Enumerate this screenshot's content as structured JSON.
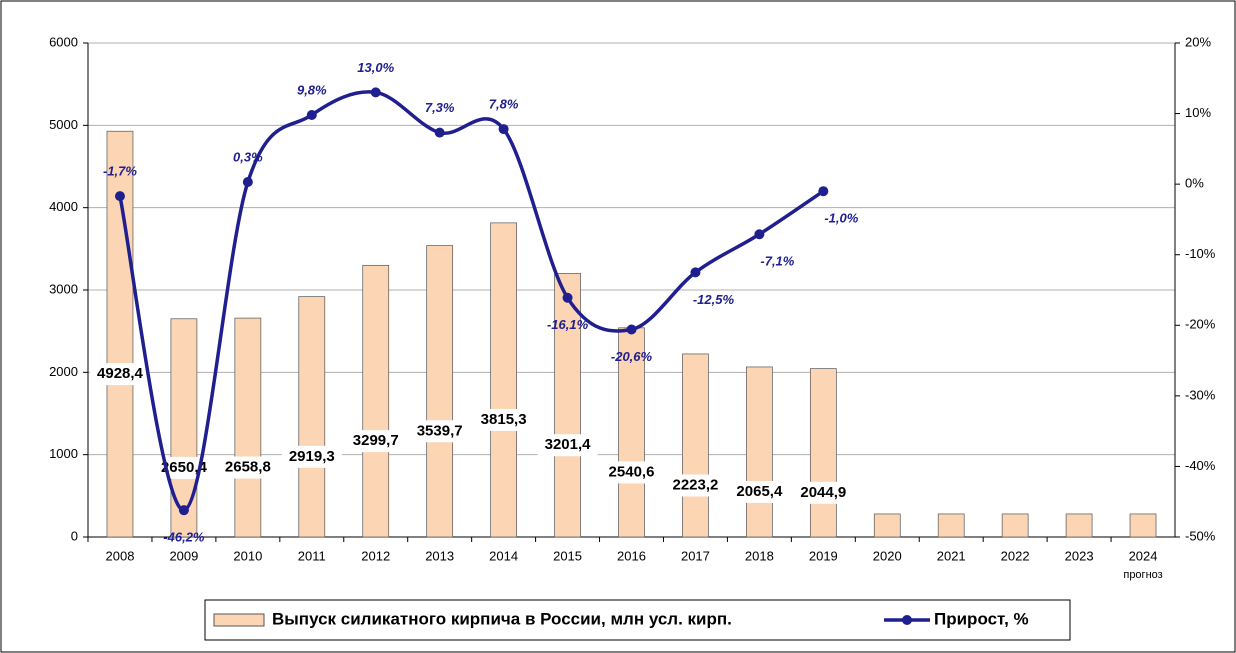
{
  "chart_data": {
    "type": "bar",
    "categories": [
      "2008",
      "2009",
      "2010",
      "2011",
      "2012",
      "2013",
      "2014",
      "2015",
      "2016",
      "2017",
      "2018",
      "2019",
      "2020",
      "2021",
      "2022",
      "2023",
      "2024"
    ],
    "category_note": "прогноз",
    "series": [
      {
        "name": "Выпуск силикатного кирпича в России, млн усл. кирп.",
        "type": "bar",
        "color": "#fcd5b4",
        "values": [
          4928.4,
          2650.4,
          2658.8,
          2919.3,
          3299.7,
          3539.7,
          3815.3,
          3201.4,
          2540.6,
          2223.2,
          2065.4,
          2044.9,
          280,
          280,
          280,
          280,
          280
        ],
        "value_labels": [
          "4928,4",
          "2650,4",
          "2658,8",
          "2919,3",
          "3299,7",
          "3539,7",
          "3815,3",
          "3201,4",
          "2540,6",
          "2223,2",
          "2065,4",
          "2044,9",
          null,
          null,
          null,
          null,
          null
        ]
      },
      {
        "name": "Прирост, %",
        "type": "line",
        "axis": "y2",
        "color": "#1f1f8f",
        "values": [
          -1.7,
          -46.2,
          0.3,
          9.8,
          13.0,
          7.3,
          7.8,
          -16.1,
          -20.6,
          -12.5,
          -7.1,
          -1.0,
          null,
          null,
          null,
          null,
          null
        ],
        "value_labels": [
          "-1,7%",
          "-46,2%",
          "0,3%",
          "9,8%",
          "13,0%",
          "7,3%",
          "7,8%",
          "-16,1%",
          "-20,6%",
          "-12,5%",
          "-7,1%",
          "-1,0%",
          null,
          null,
          null,
          null,
          null
        ]
      }
    ],
    "ylim": [
      0,
      6000
    ],
    "yticks": [
      0,
      1000,
      2000,
      3000,
      4000,
      5000,
      6000
    ],
    "y2lim": [
      -50,
      20
    ],
    "y2ticks": [
      {
        "value": -50,
        "label": "-50%"
      },
      {
        "value": -40,
        "label": "-40%"
      },
      {
        "value": -30,
        "label": "-30%"
      },
      {
        "value": -20,
        "label": "-20%"
      },
      {
        "value": -10,
        "label": "-10%"
      },
      {
        "value": 0,
        "label": "0%"
      },
      {
        "value": 10,
        "label": "10%"
      },
      {
        "value": 20,
        "label": "20%"
      }
    ],
    "grid": true,
    "legend": "bottom"
  }
}
